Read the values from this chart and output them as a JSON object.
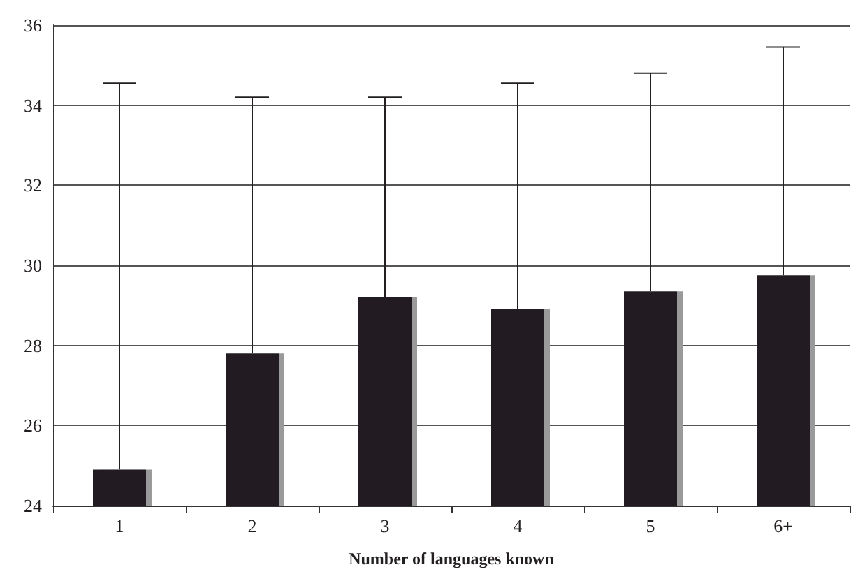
{
  "chart_data": {
    "type": "bar",
    "xlabel": "Number of languages known",
    "categories": [
      "1",
      "2",
      "3",
      "4",
      "5",
      "6+"
    ],
    "values": [
      24.9,
      27.8,
      29.2,
      28.9,
      29.35,
      29.75
    ],
    "errors": [
      [
        24.9,
        34.55
      ],
      [
        27.8,
        34.2
      ],
      [
        29.2,
        34.2
      ],
      [
        28.9,
        34.55
      ],
      [
        29.35,
        34.8
      ],
      [
        29.75,
        35.45
      ]
    ],
    "color": "#231f20",
    "ylim": [
      24,
      36
    ],
    "yticks": [
      24,
      26,
      28,
      30,
      32,
      34,
      36
    ],
    "grid": "y"
  }
}
